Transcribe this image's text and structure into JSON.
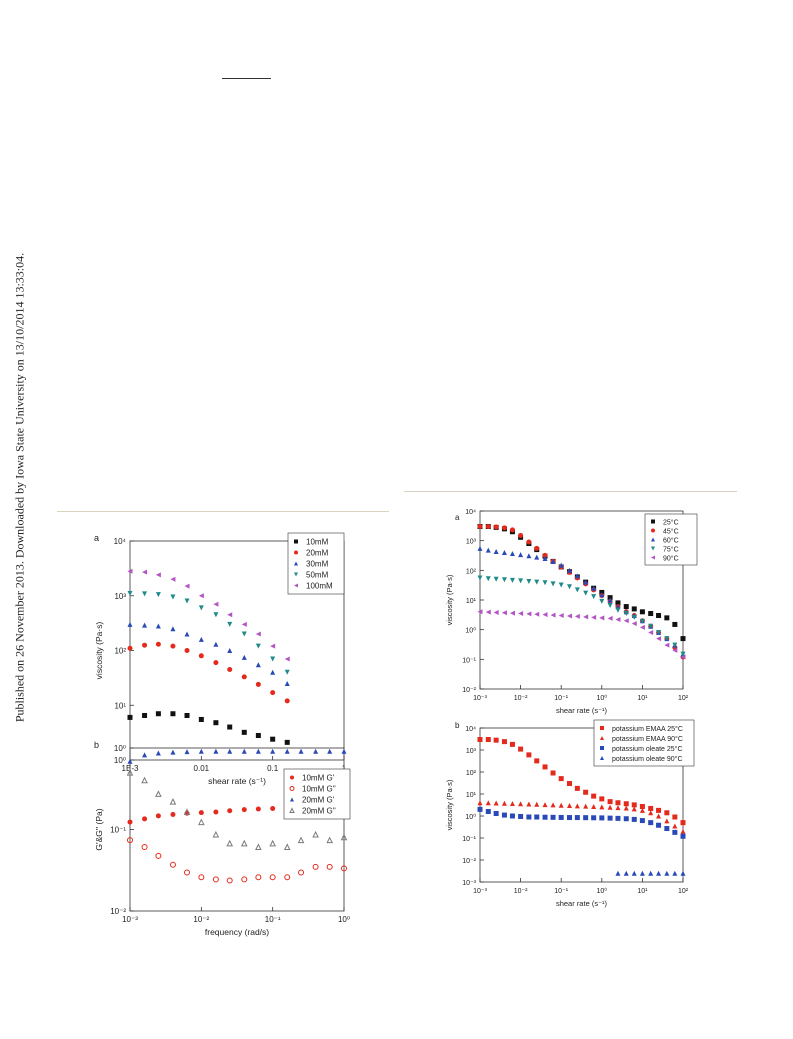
{
  "side_note": "Published on 26 November 2013. Downloaded by Iowa State University on 13/10/2014 13:33:04.",
  "chart_data": [
    {
      "panel": "a",
      "type": "scatter",
      "xlabel": "shear rate (s⁻¹)",
      "ylabel": "viscosity (Pa·s)",
      "xscale": "log",
      "yscale": "log",
      "xlim": [
        0.001,
        1
      ],
      "ylim": [
        1,
        10000
      ],
      "xticks": [
        "1E-3",
        "0.01",
        "0.1",
        "1"
      ],
      "yticks": [
        "10⁰",
        "10¹",
        "10²",
        "10³",
        "10⁴"
      ],
      "legend_position": "top-right",
      "series": [
        {
          "name": "10mM",
          "color": "#111111",
          "marker": "square",
          "x": [
            0.001,
            0.0016,
            0.0025,
            0.004,
            0.0063,
            0.01,
            0.016,
            0.025,
            0.04,
            0.063,
            0.1,
            0.16
          ],
          "y": [
            6,
            6.5,
            7,
            7,
            6.5,
            5.5,
            4.8,
            4,
            3.2,
            2.8,
            2.4,
            2.1
          ]
        },
        {
          "name": "20mM",
          "color": "#e32a1c",
          "marker": "circle",
          "x": [
            0.001,
            0.0016,
            0.0025,
            0.004,
            0.0063,
            0.01,
            0.016,
            0.025,
            0.04,
            0.063,
            0.1,
            0.16
          ],
          "y": [
            110,
            125,
            130,
            120,
            100,
            80,
            60,
            45,
            33,
            24,
            17,
            12
          ]
        },
        {
          "name": "30mM",
          "color": "#2a49b8",
          "marker": "triangle-up",
          "x": [
            0.001,
            0.0016,
            0.0025,
            0.004,
            0.0063,
            0.01,
            0.016,
            0.025,
            0.04,
            0.063,
            0.1,
            0.16
          ],
          "y": [
            300,
            290,
            280,
            250,
            200,
            160,
            130,
            100,
            75,
            55,
            40,
            25
          ]
        },
        {
          "name": "50mM",
          "color": "#1f8a8a",
          "marker": "triangle-down",
          "x": [
            0.001,
            0.0016,
            0.0025,
            0.004,
            0.0063,
            0.01,
            0.016,
            0.025,
            0.04,
            0.063,
            0.1,
            0.16
          ],
          "y": [
            1100,
            1080,
            1050,
            950,
            800,
            600,
            450,
            300,
            200,
            120,
            70,
            40
          ]
        },
        {
          "name": "100mM",
          "color": "#b353c4",
          "marker": "triangle-left",
          "x": [
            0.001,
            0.0016,
            0.0025,
            0.004,
            0.0063,
            0.01,
            0.016,
            0.025,
            0.04,
            0.063,
            0.1,
            0.16
          ],
          "y": [
            2800,
            2700,
            2400,
            2000,
            1500,
            1000,
            700,
            450,
            300,
            200,
            120,
            70
          ]
        }
      ]
    },
    {
      "panel": "b",
      "type": "scatter",
      "xlabel": "frequency (rad/s)",
      "ylabel": "G'&G'' (Pa)",
      "xscale": "log",
      "yscale": "log",
      "xlim": [
        0.001,
        1
      ],
      "ylim": [
        0.01,
        2
      ],
      "xticks": [
        "10⁻³",
        "10⁻²",
        "10⁻¹",
        "10⁰"
      ],
      "yticks": [
        "10⁻²",
        "10⁻¹",
        "10⁰"
      ],
      "legend_position": "right",
      "series": [
        {
          "name": "10mM G'",
          "color": "#e32a1c",
          "marker": "circle",
          "x": [
            0.001,
            0.0016,
            0.0025,
            0.004,
            0.0063,
            0.01,
            0.016,
            0.025,
            0.04,
            0.063,
            0.1,
            0.16,
            0.25,
            0.4,
            0.63,
            1
          ],
          "y": [
            0.18,
            0.2,
            0.22,
            0.23,
            0.24,
            0.245,
            0.25,
            0.26,
            0.27,
            0.275,
            0.28,
            0.29,
            0.3,
            0.31,
            0.31,
            0.32
          ]
        },
        {
          "name": "10mM G''",
          "color": "#e32a1c",
          "marker": "circle-open",
          "x": [
            0.001,
            0.0016,
            0.0025,
            0.004,
            0.0063,
            0.01,
            0.016,
            0.025,
            0.04,
            0.063,
            0.1,
            0.16,
            0.25,
            0.4,
            0.63,
            1
          ],
          "y": [
            0.1,
            0.08,
            0.06,
            0.045,
            0.035,
            0.03,
            0.028,
            0.027,
            0.028,
            0.03,
            0.03,
            0.03,
            0.035,
            0.042,
            0.042,
            0.04
          ]
        },
        {
          "name": "20mM G'",
          "color": "#2a49b8",
          "marker": "triangle-up",
          "x": [
            0.001,
            0.0016,
            0.0025,
            0.004,
            0.0063,
            0.01,
            0.016,
            0.025,
            0.04,
            0.063,
            0.1,
            0.16,
            0.25,
            0.4,
            0.63,
            1
          ],
          "y": [
            1.3,
            1.6,
            1.7,
            1.75,
            1.78,
            1.8,
            1.8,
            1.8,
            1.8,
            1.8,
            1.8,
            1.8,
            1.8,
            1.8,
            1.8,
            1.8
          ]
        },
        {
          "name": "20mM G''",
          "color": "#7a7a7a",
          "marker": "triangle-open",
          "x": [
            0.001,
            0.0016,
            0.0025,
            0.004,
            0.0063,
            0.01,
            0.016,
            0.025,
            0.04,
            0.063,
            0.1,
            0.16,
            0.25,
            0.4,
            0.63,
            1
          ],
          "y": [
            0.9,
            0.7,
            0.45,
            0.35,
            0.25,
            0.18,
            0.12,
            0.09,
            0.09,
            0.08,
            0.09,
            0.08,
            0.1,
            0.12,
            0.1,
            0.11
          ]
        }
      ]
    },
    {
      "panel": "a",
      "type": "scatter",
      "xlabel": "shear rate (s⁻¹)",
      "ylabel": "viscosity (Pa·s)",
      "xscale": "log",
      "yscale": "log",
      "xlim": [
        0.001,
        100
      ],
      "ylim": [
        0.01,
        10000
      ],
      "xticks": [
        "10⁻³",
        "10⁻²",
        "10⁻¹",
        "10⁰",
        "10¹",
        "10²"
      ],
      "yticks": [
        "10⁻²",
        "10⁻¹",
        "10⁰",
        "10¹",
        "10²",
        "10³",
        "10⁴"
      ],
      "legend_position": "top-right",
      "series": [
        {
          "name": "25°C",
          "color": "#111111",
          "marker": "square",
          "x": [
            0.001,
            0.0016,
            0.0025,
            0.004,
            0.0063,
            0.01,
            0.016,
            0.025,
            0.04,
            0.063,
            0.1,
            0.16,
            0.25,
            0.4,
            0.63,
            1,
            1.6,
            2.5,
            4,
            6.3,
            10,
            16,
            25,
            40,
            63,
            100
          ],
          "y": [
            3000,
            3000,
            2800,
            2500,
            2000,
            1300,
            800,
            500,
            300,
            200,
            130,
            90,
            60,
            40,
            25,
            18,
            12,
            8,
            6,
            5,
            4,
            3.5,
            3,
            2.5,
            1.5,
            0.5
          ]
        },
        {
          "name": "45°C",
          "color": "#e32a1c",
          "marker": "circle",
          "x": [
            0.001,
            0.0016,
            0.0025,
            0.004,
            0.0063,
            0.01,
            0.016,
            0.025,
            0.04,
            0.063,
            0.1,
            0.16,
            0.25,
            0.4,
            0.63,
            1,
            1.6,
            2.5,
            4,
            6.3,
            10,
            16,
            25,
            40,
            63,
            100
          ],
          "y": [
            3000,
            3000,
            2900,
            2700,
            2300,
            1500,
            900,
            550,
            320,
            200,
            130,
            85,
            55,
            35,
            22,
            14,
            9,
            6,
            4,
            3,
            2,
            1.3,
            0.8,
            0.5,
            0.25,
            0.12
          ]
        },
        {
          "name": "60°C",
          "color": "#2a49b8",
          "marker": "triangle-up",
          "x": [
            0.001,
            0.0016,
            0.0025,
            0.004,
            0.0063,
            0.01,
            0.016,
            0.025,
            0.04,
            0.063,
            0.1,
            0.16,
            0.25,
            0.4,
            0.63,
            1,
            1.6,
            2.5,
            4,
            6.3,
            10,
            16,
            25,
            40,
            63,
            100
          ],
          "y": [
            550,
            480,
            430,
            400,
            370,
            340,
            310,
            280,
            250,
            200,
            150,
            100,
            65,
            40,
            25,
            15,
            10,
            6,
            4,
            3,
            2,
            1.3,
            0.8,
            0.5,
            0.3,
            0.15
          ]
        },
        {
          "name": "75°C",
          "color": "#1f8a8a",
          "marker": "triangle-down",
          "x": [
            0.001,
            0.0016,
            0.0025,
            0.004,
            0.0063,
            0.01,
            0.016,
            0.025,
            0.04,
            0.063,
            0.1,
            0.16,
            0.25,
            0.4,
            0.63,
            1,
            1.6,
            2.5,
            4,
            6.3,
            10,
            16,
            25,
            40,
            63,
            100
          ],
          "y": [
            55,
            52,
            50,
            48,
            46,
            44,
            42,
            40,
            38,
            35,
            32,
            28,
            22,
            17,
            13,
            9,
            6.5,
            4.5,
            3.5,
            2.6,
            1.9,
            1.3,
            0.8,
            0.5,
            0.3,
            0.15
          ]
        },
        {
          "name": "90°C",
          "color": "#b353c4",
          "marker": "triangle-left",
          "x": [
            0.001,
            0.0016,
            0.0025,
            0.004,
            0.0063,
            0.01,
            0.016,
            0.025,
            0.04,
            0.063,
            0.1,
            0.16,
            0.25,
            0.4,
            0.63,
            1,
            1.6,
            2.5,
            4,
            6.3,
            10,
            16,
            25,
            40,
            63,
            100
          ],
          "y": [
            4,
            3.9,
            3.8,
            3.7,
            3.6,
            3.5,
            3.4,
            3.3,
            3.2,
            3.1,
            3,
            2.9,
            2.8,
            2.7,
            2.6,
            2.5,
            2.4,
            2.2,
            2,
            1.6,
            1.2,
            0.8,
            0.5,
            0.3,
            0.2,
            0.12
          ]
        }
      ]
    },
    {
      "panel": "b",
      "type": "scatter",
      "xlabel": "shear rate (s⁻¹)",
      "ylabel": "viscosity (Pa·s)",
      "xscale": "log",
      "yscale": "log",
      "xlim": [
        0.001,
        100
      ],
      "ylim": [
        0.001,
        10000
      ],
      "xticks": [
        "10⁻³",
        "10⁻²",
        "10⁻¹",
        "10⁰",
        "10¹",
        "10²"
      ],
      "yticks": [
        "10⁻³",
        "10⁻²",
        "10⁻¹",
        "10⁰",
        "10¹",
        "10²",
        "10³",
        "10⁴"
      ],
      "legend_position": "top-right",
      "series": [
        {
          "name": "potassium EMAA 25°C",
          "color": "#e32a1c",
          "marker": "square",
          "x": [
            0.001,
            0.0016,
            0.0025,
            0.004,
            0.0063,
            0.01,
            0.016,
            0.025,
            0.04,
            0.063,
            0.1,
            0.16,
            0.25,
            0.4,
            0.63,
            1,
            1.6,
            2.5,
            4,
            6.3,
            10,
            16,
            25,
            40,
            63,
            100
          ],
          "y": [
            3000,
            3000,
            2800,
            2400,
            1800,
            1100,
            600,
            320,
            170,
            90,
            50,
            30,
            18,
            12,
            8,
            6,
            4.5,
            4,
            3.6,
            3.2,
            2.7,
            2.2,
            1.8,
            1.4,
            0.9,
            0.5
          ]
        },
        {
          "name": "potassium EMAA 90°C",
          "color": "#e32a1c",
          "marker": "triangle-up",
          "x": [
            0.001,
            0.0016,
            0.0025,
            0.004,
            0.0063,
            0.01,
            0.016,
            0.025,
            0.04,
            0.063,
            0.1,
            0.16,
            0.25,
            0.4,
            0.63,
            1,
            1.6,
            2.5,
            4,
            6.3,
            10,
            16,
            25,
            40,
            63,
            100
          ],
          "y": [
            4,
            4,
            3.9,
            3.8,
            3.7,
            3.6,
            3.5,
            3.4,
            3.3,
            3.2,
            3.1,
            3,
            2.9,
            2.8,
            2.7,
            2.6,
            2.5,
            2.4,
            2.3,
            2.1,
            1.8,
            1.4,
            1,
            0.6,
            0.35,
            0.2
          ]
        },
        {
          "name": "potassium oleate 25°C",
          "color": "#2a49b8",
          "marker": "square",
          "x": [
            0.001,
            0.0016,
            0.0025,
            0.004,
            0.0063,
            0.01,
            0.016,
            0.025,
            0.04,
            0.063,
            0.1,
            0.16,
            0.25,
            0.4,
            0.63,
            1,
            1.6,
            2.5,
            4,
            6.3,
            10,
            16,
            25,
            40,
            63,
            100
          ],
          "y": [
            2,
            1.6,
            1.3,
            1.1,
            1,
            0.95,
            0.9,
            0.9,
            0.88,
            0.87,
            0.86,
            0.85,
            0.85,
            0.84,
            0.83,
            0.82,
            0.8,
            0.78,
            0.75,
            0.7,
            0.62,
            0.5,
            0.38,
            0.27,
            0.18,
            0.12
          ]
        },
        {
          "name": "potassium oleate 90°C",
          "color": "#2a49b8",
          "marker": "triangle-up",
          "x": [
            2.5,
            4,
            6.3,
            10,
            16,
            25,
            40,
            63,
            100
          ],
          "y": [
            0.0025,
            0.0025,
            0.0025,
            0.0025,
            0.0025,
            0.0025,
            0.0025,
            0.0025,
            0.0025
          ]
        }
      ]
    }
  ]
}
